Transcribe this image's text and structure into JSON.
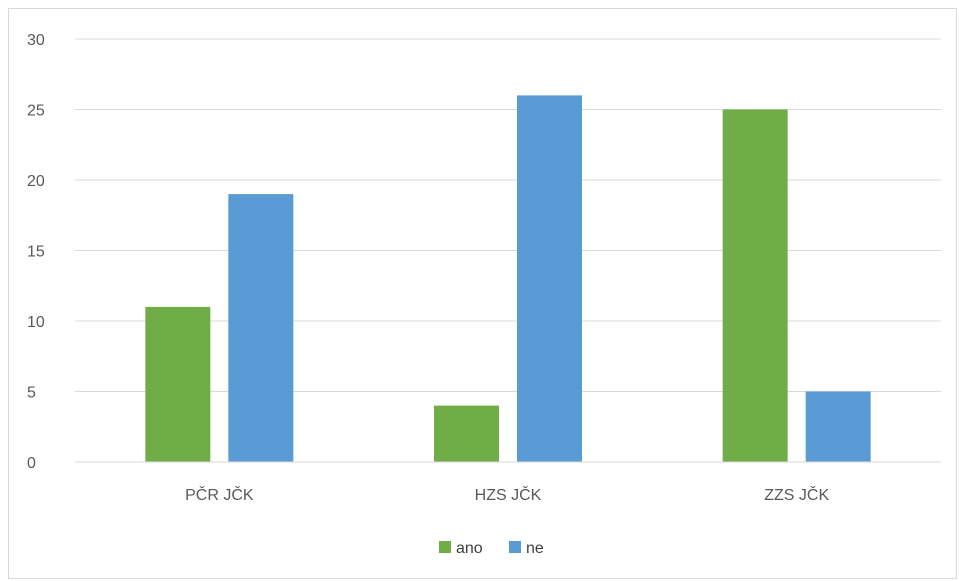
{
  "chart_data": {
    "type": "bar",
    "categories": [
      "PČR JČK",
      "HZS JČK",
      "ZZS JČK"
    ],
    "series": [
      {
        "name": "ano",
        "values": [
          11,
          4,
          25
        ],
        "color": "#70ad47"
      },
      {
        "name": "ne",
        "values": [
          19,
          26,
          5
        ],
        "color": "#5b9bd5"
      }
    ],
    "title": "",
    "xlabel": "",
    "ylabel": "",
    "ylim": [
      0,
      30
    ],
    "yticks": [
      0,
      5,
      10,
      15,
      20,
      25,
      30
    ],
    "grid": true,
    "legend_position": "bottom"
  }
}
